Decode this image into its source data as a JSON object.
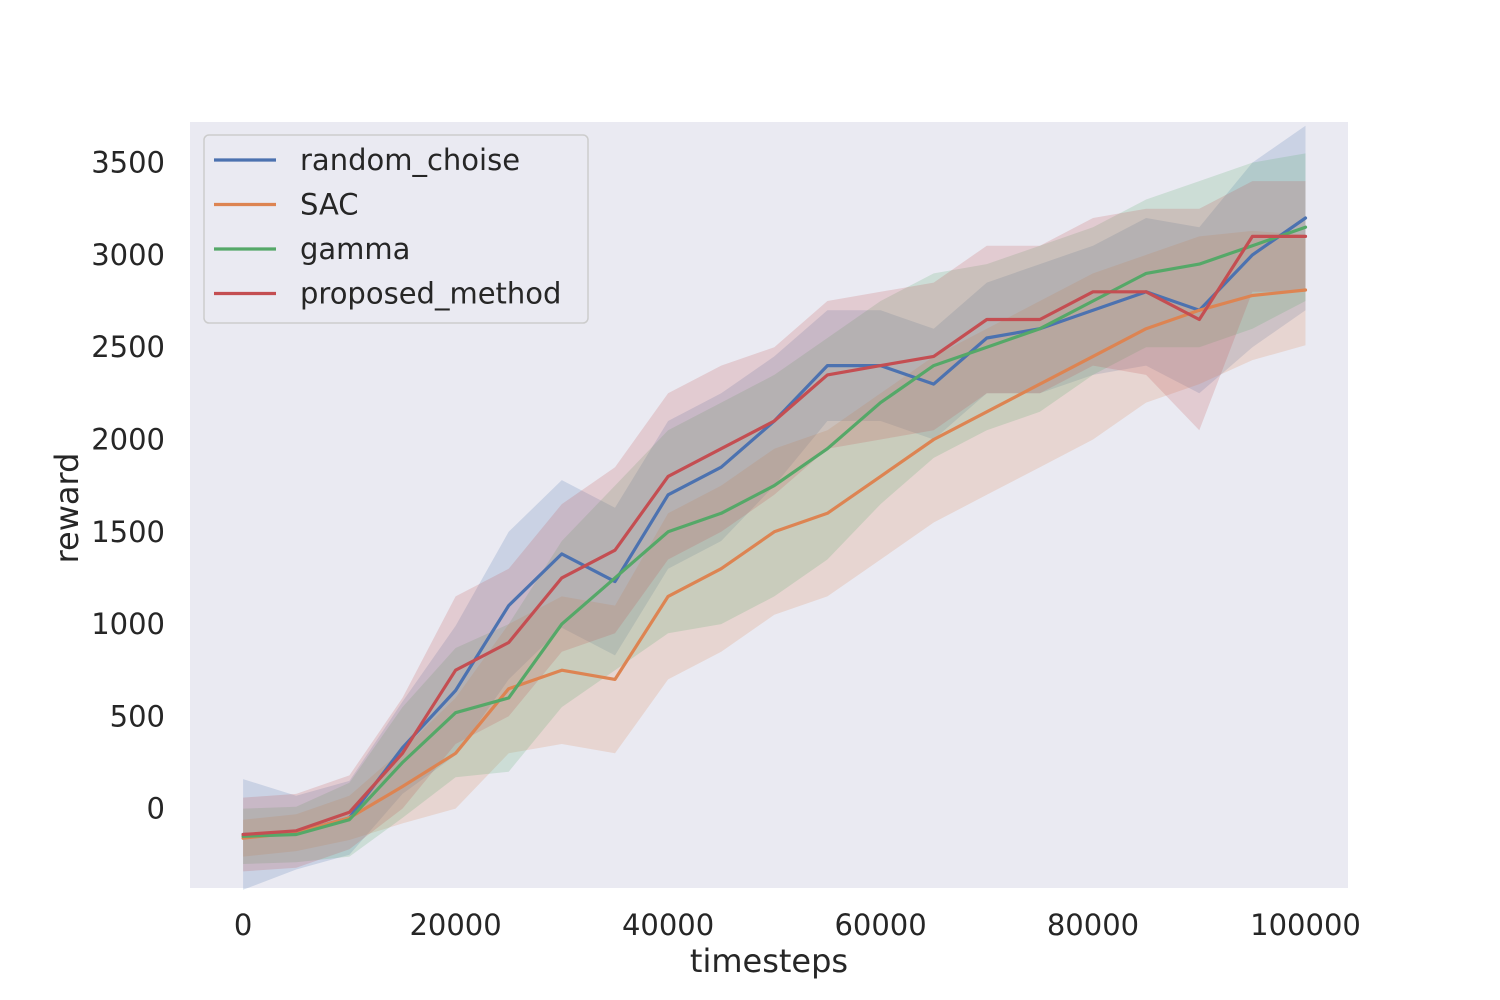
{
  "chart_data": {
    "type": "line",
    "xlabel": "timesteps",
    "ylabel": "reward",
    "xlim": [
      -5000,
      104000
    ],
    "ylim": [
      -430,
      3720
    ],
    "xticks": [
      0,
      20000,
      40000,
      60000,
      80000,
      100000
    ],
    "xtick_labels": [
      "0",
      "20000",
      "40000",
      "60000",
      "80000",
      "100000"
    ],
    "yticks": [
      0,
      500,
      1000,
      1500,
      2000,
      2500,
      3000,
      3500
    ],
    "ytick_labels": [
      "0",
      "500",
      "1000",
      "1500",
      "2000",
      "2500",
      "3000",
      "3500"
    ],
    "grid": false,
    "background": "#eaeaf2",
    "legend_position": "top-left",
    "x": [
      0,
      5000,
      10000,
      15000,
      20000,
      25000,
      30000,
      35000,
      40000,
      45000,
      50000,
      55000,
      60000,
      65000,
      70000,
      75000,
      80000,
      85000,
      90000,
      95000,
      100000
    ],
    "series": [
      {
        "name": "random_choise",
        "color": "#4c72b0",
        "values": [
          -140,
          -130,
          -50,
          330,
          640,
          1100,
          1380,
          1230,
          1700,
          1850,
          2100,
          2400,
          2400,
          2300,
          2550,
          2600,
          2700,
          2800,
          2700,
          3000,
          3200
        ],
        "band": [
          300,
          200,
          200,
          250,
          350,
          400,
          400,
          400,
          400,
          400,
          350,
          300,
          300,
          300,
          300,
          350,
          350,
          400,
          450,
          500,
          500
        ]
      },
      {
        "name": "SAC",
        "color": "#dd8452",
        "values": [
          -160,
          -130,
          -50,
          120,
          300,
          650,
          750,
          700,
          1150,
          1300,
          1500,
          1600,
          1800,
          2000,
          2150,
          2300,
          2450,
          2600,
          2700,
          2780,
          2810
        ],
        "band": [
          100,
          100,
          120,
          200,
          300,
          350,
          400,
          400,
          450,
          450,
          450,
          450,
          450,
          450,
          450,
          450,
          450,
          400,
          400,
          350,
          300
        ]
      },
      {
        "name": "gamma",
        "color": "#55a868",
        "values": [
          -150,
          -140,
          -60,
          250,
          520,
          600,
          1000,
          1250,
          1500,
          1600,
          1750,
          1950,
          2200,
          2400,
          2500,
          2600,
          2750,
          2900,
          2950,
          3050,
          3150
        ],
        "band": [
          150,
          150,
          200,
          300,
          350,
          400,
          450,
          500,
          550,
          600,
          600,
          600,
          550,
          500,
          450,
          450,
          400,
          400,
          450,
          450,
          400
        ]
      },
      {
        "name": "proposed_method",
        "color": "#c44e52",
        "values": [
          -140,
          -120,
          -20,
          300,
          750,
          900,
          1250,
          1400,
          1800,
          1950,
          2100,
          2350,
          2400,
          2450,
          2650,
          2650,
          2800,
          2800,
          2650,
          3100,
          3100
        ],
        "band": [
          200,
          200,
          200,
          300,
          400,
          400,
          400,
          450,
          450,
          450,
          400,
          400,
          400,
          400,
          400,
          400,
          400,
          450,
          600,
          300,
          300
        ]
      }
    ]
  }
}
